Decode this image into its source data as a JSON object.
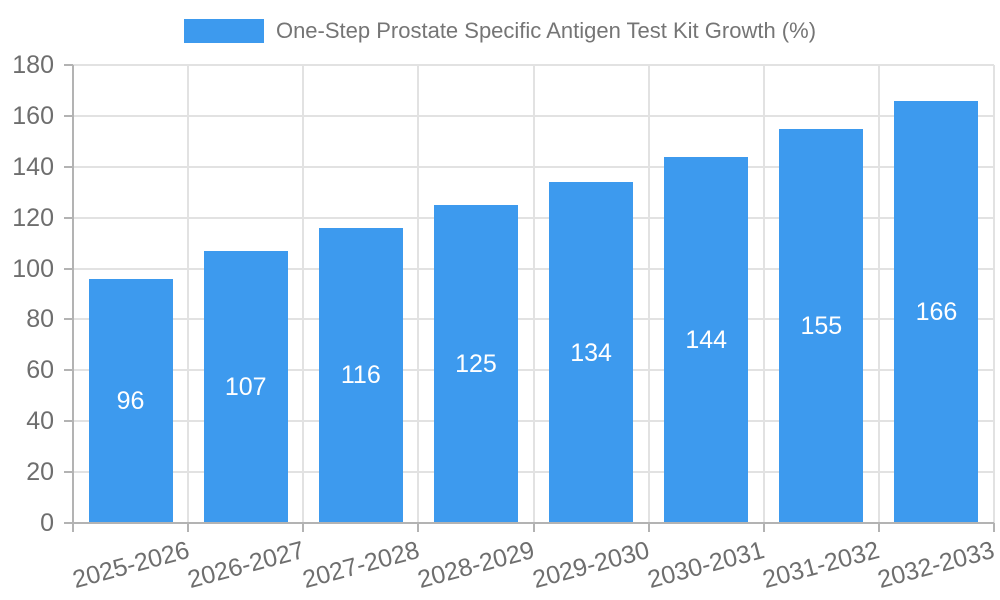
{
  "legend": {
    "label": "One-Step Prostate Specific Antigen Test Kit Growth (%)"
  },
  "chart_data": {
    "type": "bar",
    "title": "One-Step Prostate Specific Antigen Test Kit Growth (%)",
    "series_name": "One-Step Prostate Specific Antigen Test Kit Growth (%)",
    "categories": [
      "2025-2026",
      "2026-2027",
      "2027-2028",
      "2028-2029",
      "2029-2030",
      "2030-2031",
      "2031-2032",
      "2032-2033"
    ],
    "values": [
      96,
      107,
      116,
      125,
      134,
      144,
      155,
      166
    ],
    "value_labels": [
      "96",
      "107",
      "116",
      "125",
      "134",
      "144",
      "155",
      "166"
    ],
    "xlabel": "",
    "ylabel": "",
    "ylim": [
      0,
      180
    ],
    "ytick_step": 20,
    "yticks": [
      0,
      20,
      40,
      60,
      80,
      100,
      120,
      140,
      160,
      180
    ],
    "grid": true,
    "legend_position": "top",
    "x_label_rotation": -15,
    "colors": {
      "bar": "#3d9aee",
      "grid": "#e2e2e2",
      "axis": "#b3b3b3",
      "tick_text": "#6e6e6e",
      "title_text": "#757575",
      "value_label": "#ffffff",
      "background": "#ffffff"
    }
  }
}
